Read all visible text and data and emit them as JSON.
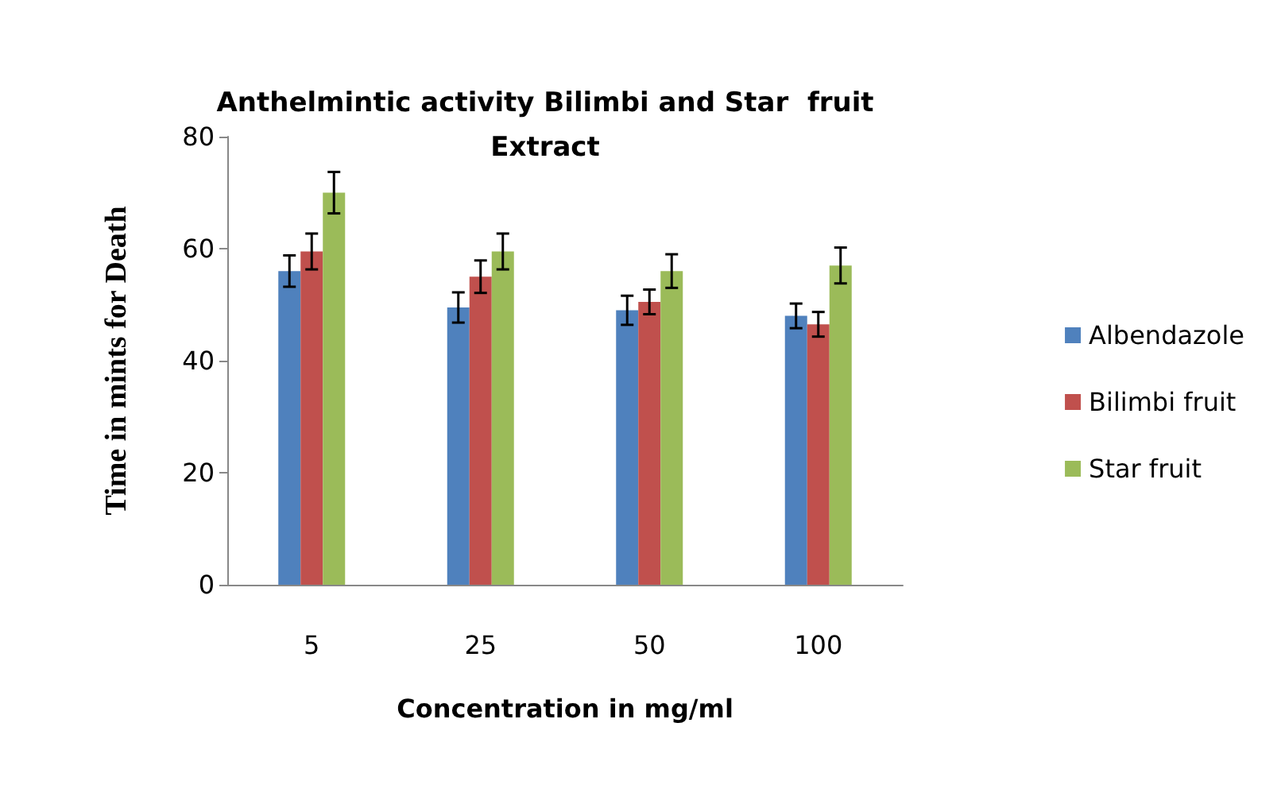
{
  "chart_data": {
    "type": "bar",
    "title": "Anthelmintic activity Bilimbi and Star  fruit\nExtract",
    "xlabel": "Concentration in mg/ml",
    "ylabel": "Time in mints for Death",
    "categories": [
      "5",
      "25",
      "50",
      "100"
    ],
    "series": [
      {
        "name": "Albendazole",
        "color": "#4f81bd",
        "values": [
          56,
          49.5,
          49,
          48
        ],
        "errors": [
          2.8,
          2.7,
          2.6,
          2.2
        ]
      },
      {
        "name": "Bilimbi fruit",
        "color": "#c0504d",
        "values": [
          59.5,
          55,
          50.5,
          46.5
        ],
        "errors": [
          3.2,
          2.9,
          2.2,
          2.2
        ]
      },
      {
        "name": "Star fruit",
        "color": "#9bbb59",
        "values": [
          70,
          59.5,
          56,
          57
        ],
        "errors": [
          3.7,
          3.2,
          3,
          3.2
        ]
      }
    ],
    "ylim": [
      0,
      80
    ],
    "yticks": [
      0,
      20,
      40,
      60,
      80
    ],
    "grid": false,
    "legend": "right"
  }
}
